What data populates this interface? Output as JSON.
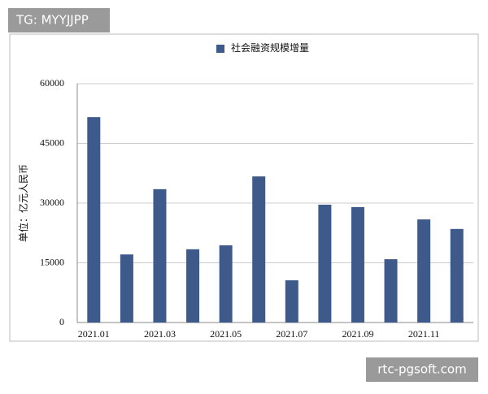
{
  "watermarks": {
    "top_left": "TG: MYYJJPP",
    "bottom_right": "rtc-pgsoft.com"
  },
  "chart_data": {
    "type": "bar",
    "y_label": "单位：亿元人民币",
    "categories": [
      "2021.01",
      null,
      "2021.03",
      null,
      "2021.05",
      null,
      "2021.07",
      null,
      "2021.09",
      null,
      "2021.11",
      null
    ],
    "series": [
      {
        "name": "社会融资规模增量",
        "color": "#3d5a8a",
        "values": [
          51600,
          17100,
          33500,
          18400,
          19400,
          36700,
          10600,
          29600,
          29000,
          15900,
          25900,
          23500
        ]
      }
    ],
    "ylim": [
      0,
      60000
    ],
    "yticks": [
      0,
      15000,
      30000,
      45000,
      60000
    ],
    "grid": true,
    "legend": "top"
  }
}
